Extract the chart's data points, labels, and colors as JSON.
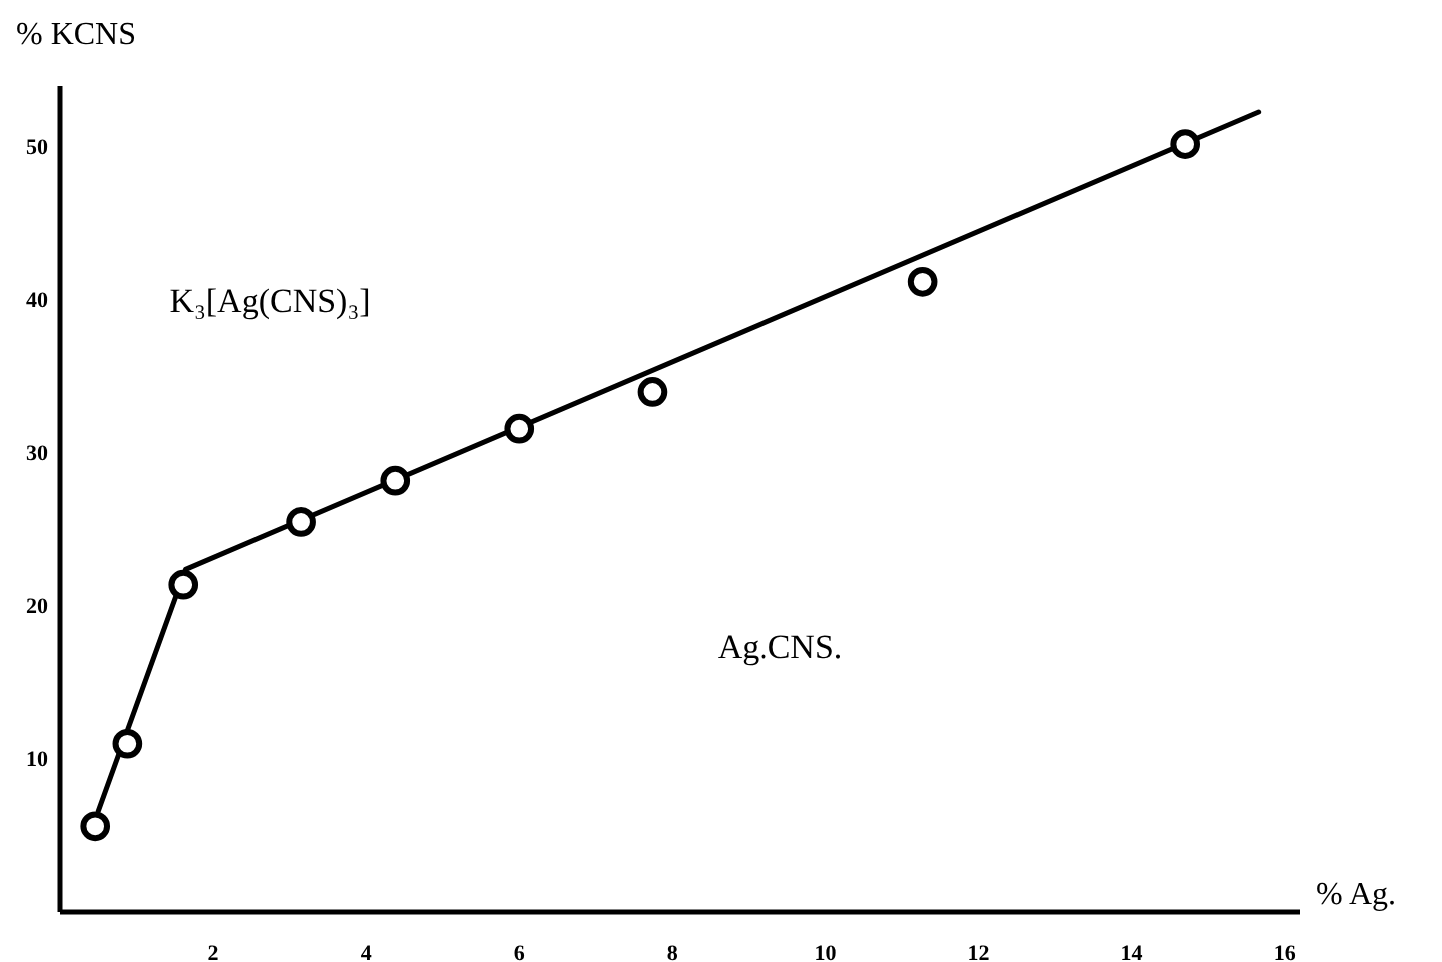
{
  "chart_data": {
    "type": "scatter",
    "xlabel": "% Ag.",
    "ylabel": "% KCNS",
    "xlim": [
      0,
      16.2
    ],
    "ylim": [
      0,
      54
    ],
    "xticks": [
      2,
      4,
      6,
      8,
      10,
      12,
      14,
      16
    ],
    "yticks": [
      10,
      20,
      30,
      40,
      50
    ],
    "grid": false,
    "series": [
      {
        "color": "#000000",
        "marker": "circle",
        "x": [
          0.46,
          0.88,
          1.61,
          3.15,
          4.38,
          6.0,
          7.74,
          11.27,
          14.7
        ],
        "values": [
          5.6,
          11.0,
          21.4,
          25.5,
          28.2,
          31.6,
          34.0,
          41.2,
          50.2
        ]
      },
      {
        "type": "line",
        "color": "#000000",
        "line_style": "solid",
        "x": [
          0.5,
          1.64,
          15.66
        ],
        "values": [
          6.6,
          22.4,
          52.3
        ]
      }
    ],
    "annotations": [
      "K₃[Ag(CNS)₃]",
      "Ag.CNS."
    ]
  }
}
